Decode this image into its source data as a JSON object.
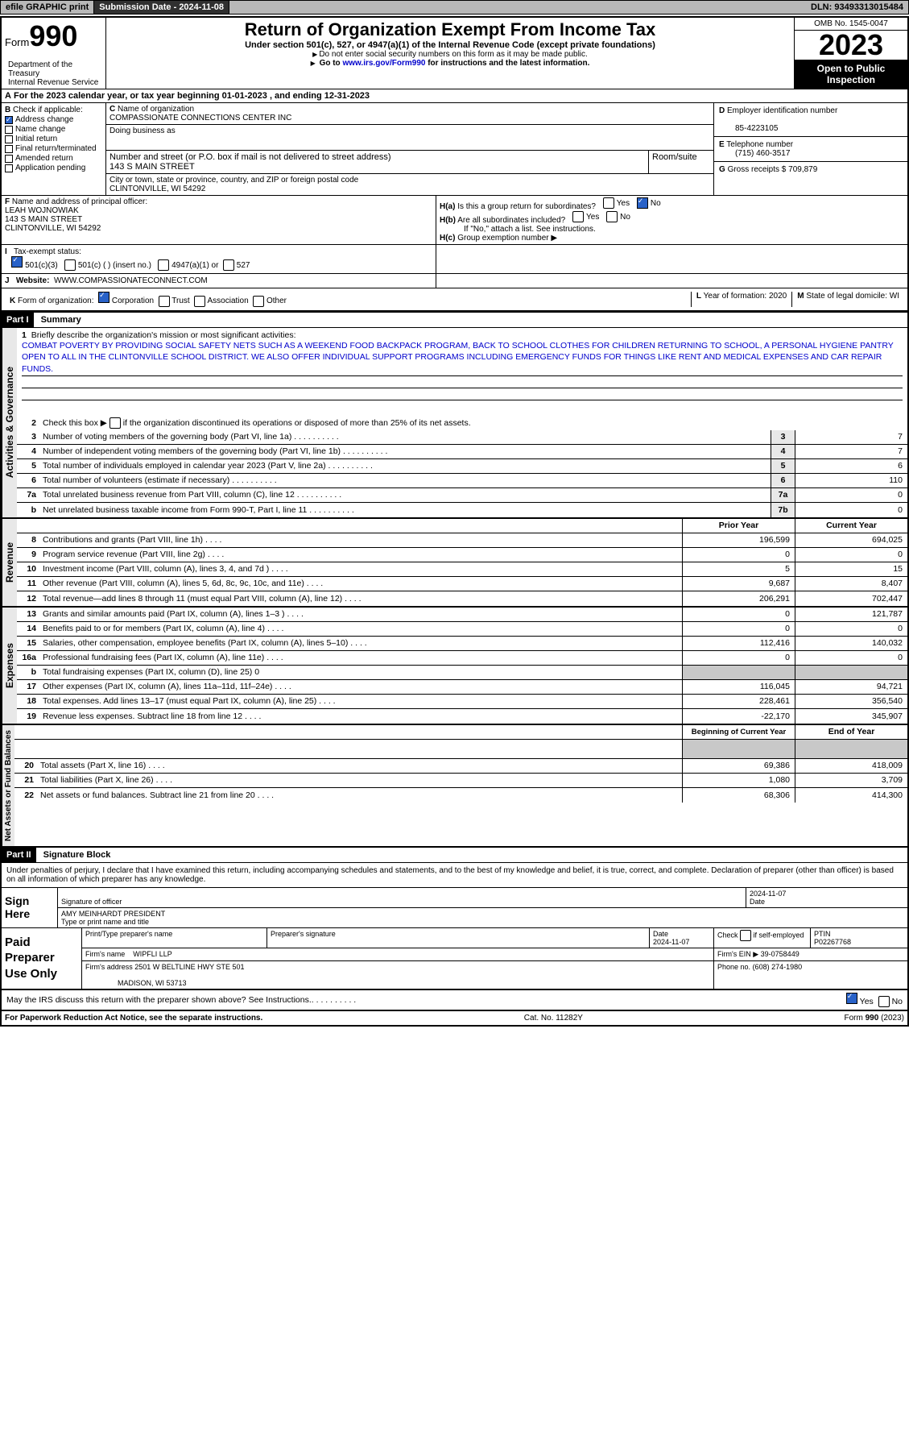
{
  "topbar": {
    "efile": "efile GRAPHIC print",
    "sub_label": "Submission Date - 2024-11-08",
    "dln": "DLN: 93493313015484"
  },
  "header": {
    "form_word": "Form",
    "form_num": "990",
    "dept": "Department of the Treasury\nInternal Revenue Service",
    "title": "Return of Organization Exempt From Income Tax",
    "sub1": "Under section 501(c), 527, or 4947(a)(1) of the Internal Revenue Code (except private foundations)",
    "sub2": "Do not enter social security numbers on this form as it may be made public.",
    "sub3_pre": "Go to ",
    "sub3_link": "www.irs.gov/Form990",
    "sub3_post": " for instructions and the latest information.",
    "omb": "OMB No. 1545-0047",
    "year": "2023",
    "open": "Open to Public Inspection"
  },
  "line_a": "For the 2023 calendar year, or tax year beginning 01-01-2023   , and ending 12-31-2023",
  "box_b": {
    "label": "Check if applicable:",
    "items": [
      "Address change",
      "Name change",
      "Initial return",
      "Final return/terminated",
      "Amended return",
      "Application pending"
    ],
    "checked": [
      true,
      false,
      false,
      false,
      false,
      false
    ]
  },
  "box_c": {
    "name_label": "Name of organization",
    "name": "COMPASSIONATE CONNECTIONS CENTER INC",
    "dba_label": "Doing business as",
    "addr_label": "Number and street (or P.O. box if mail is not delivered to street address)",
    "room_label": "Room/suite",
    "addr": "143 S MAIN STREET",
    "city_label": "City or town, state or province, country, and ZIP or foreign postal code",
    "city": "CLINTONVILLE, WI  54292"
  },
  "box_d": {
    "label": "Employer identification number",
    "val": "85-4223105"
  },
  "box_e": {
    "label": "Telephone number",
    "val": "(715) 460-3517"
  },
  "box_g": {
    "label": "Gross receipts $",
    "val": "709,879"
  },
  "box_f": {
    "label": "Name and address of principal officer:",
    "name": "LEAH WOJNOWIAK",
    "addr1": "143 S MAIN STREET",
    "addr2": "CLINTONVILLE, WI  54292"
  },
  "box_h": {
    "a": "Is this a group return for subordinates?",
    "b": "Are all subordinates included?",
    "note": "If \"No,\" attach a list. See instructions.",
    "c": "Group exemption number"
  },
  "box_i": {
    "label": "Tax-exempt status:",
    "opts": [
      "501(c)(3)",
      "501(c) (  ) (insert no.)",
      "4947(a)(1) or",
      "527"
    ]
  },
  "box_j": {
    "label": "Website:",
    "val": "WWW.COMPASSIONATECONNECT.COM"
  },
  "box_k": {
    "label": "Form of organization:",
    "opts": [
      "Corporation",
      "Trust",
      "Association",
      "Other"
    ]
  },
  "box_l": {
    "label": "Year of formation:",
    "val": "2020"
  },
  "box_m": {
    "label": "State of legal domicile:",
    "val": "WI"
  },
  "part1": {
    "hdr": "Part I",
    "title": "Summary"
  },
  "gov": {
    "label": "Activities & Governance",
    "l1": "Briefly describe the organization's mission or most significant activities:",
    "mission": "COMBAT POVERTY BY PROVIDING SOCIAL SAFETY NETS SUCH AS A WEEKEND FOOD BACKPACK PROGRAM, BACK TO SCHOOL CLOTHES FOR CHILDREN RETURNING TO SCHOOL, A PERSONAL HYGIENE PANTRY OPEN TO ALL IN THE CLINTONVILLE SCHOOL DISTRICT. WE ALSO OFFER INDIVIDUAL SUPPORT PROGRAMS INCLUDING EMERGENCY FUNDS FOR THINGS LIKE RENT AND MEDICAL EXPENSES AND CAR REPAIR FUNDS.",
    "l2": "Check this box      if the organization discontinued its operations or disposed of more than 25% of its net assets.",
    "lines": [
      {
        "n": "3",
        "t": "Number of voting members of the governing body (Part VI, line 1a)",
        "b": "3",
        "v": "7"
      },
      {
        "n": "4",
        "t": "Number of independent voting members of the governing body (Part VI, line 1b)",
        "b": "4",
        "v": "7"
      },
      {
        "n": "5",
        "t": "Total number of individuals employed in calendar year 2023 (Part V, line 2a)",
        "b": "5",
        "v": "6"
      },
      {
        "n": "6",
        "t": "Total number of volunteers (estimate if necessary)",
        "b": "6",
        "v": "110"
      },
      {
        "n": "7a",
        "t": "Total unrelated business revenue from Part VIII, column (C), line 12",
        "b": "7a",
        "v": "0"
      },
      {
        "n": "b",
        "t": "Net unrelated business taxable income from Form 990-T, Part I, line 11",
        "b": "7b",
        "v": "0"
      }
    ]
  },
  "rev": {
    "label": "Revenue",
    "hdr_prior": "Prior Year",
    "hdr_curr": "Current Year",
    "lines": [
      {
        "n": "8",
        "t": "Contributions and grants (Part VIII, line 1h)",
        "p": "196,599",
        "c": "694,025"
      },
      {
        "n": "9",
        "t": "Program service revenue (Part VIII, line 2g)",
        "p": "0",
        "c": "0"
      },
      {
        "n": "10",
        "t": "Investment income (Part VIII, column (A), lines 3, 4, and 7d )",
        "p": "5",
        "c": "15"
      },
      {
        "n": "11",
        "t": "Other revenue (Part VIII, column (A), lines 5, 6d, 8c, 9c, 10c, and 11e)",
        "p": "9,687",
        "c": "8,407"
      },
      {
        "n": "12",
        "t": "Total revenue—add lines 8 through 11 (must equal Part VIII, column (A), line 12)",
        "p": "206,291",
        "c": "702,447"
      }
    ]
  },
  "exp": {
    "label": "Expenses",
    "lines": [
      {
        "n": "13",
        "t": "Grants and similar amounts paid (Part IX, column (A), lines 1–3 )",
        "p": "0",
        "c": "121,787"
      },
      {
        "n": "14",
        "t": "Benefits paid to or for members (Part IX, column (A), line 4)",
        "p": "0",
        "c": "0"
      },
      {
        "n": "15",
        "t": "Salaries, other compensation, employee benefits (Part IX, column (A), lines 5–10)",
        "p": "112,416",
        "c": "140,032"
      },
      {
        "n": "16a",
        "t": "Professional fundraising fees (Part IX, column (A), line 11e)",
        "p": "0",
        "c": "0"
      },
      {
        "n": "b",
        "t": "Total fundraising expenses (Part IX, column (D), line 25) 0",
        "shade": true
      },
      {
        "n": "17",
        "t": "Other expenses (Part IX, column (A), lines 11a–11d, 11f–24e)",
        "p": "116,045",
        "c": "94,721"
      },
      {
        "n": "18",
        "t": "Total expenses. Add lines 13–17 (must equal Part IX, column (A), line 25)",
        "p": "228,461",
        "c": "356,540"
      },
      {
        "n": "19",
        "t": "Revenue less expenses. Subtract line 18 from line 12",
        "p": "-22,170",
        "c": "345,907"
      }
    ]
  },
  "net": {
    "label": "Net Assets or Fund Balances",
    "hdr_beg": "Beginning of Current Year",
    "hdr_end": "End of Year",
    "lines": [
      {
        "n": "20",
        "t": "Total assets (Part X, line 16)",
        "p": "69,386",
        "c": "418,009"
      },
      {
        "n": "21",
        "t": "Total liabilities (Part X, line 26)",
        "p": "1,080",
        "c": "3,709"
      },
      {
        "n": "22",
        "t": "Net assets or fund balances. Subtract line 21 from line 20",
        "p": "68,306",
        "c": "414,300"
      }
    ]
  },
  "part2": {
    "hdr": "Part II",
    "title": "Signature Block"
  },
  "perjury": "Under penalties of perjury, I declare that I have examined this return, including accompanying schedules and statements, and to the best of my knowledge and belief, it is true, correct, and complete. Declaration of preparer (other than officer) is based on all information of which preparer has any knowledge.",
  "sign": {
    "here": "Sign Here",
    "sig_label": "Signature of officer",
    "date_label": "Date",
    "date": "2024-11-07",
    "name": "AMY MEINHARDT PRESIDENT",
    "name_label": "Type or print name and title"
  },
  "paid": {
    "label": "Paid Preparer Use Only",
    "print_label": "Print/Type preparer's name",
    "sig_label": "Preparer's signature",
    "date_label": "Date",
    "date": "2024-11-07",
    "check_label": "Check      if self-employed",
    "ptin_label": "PTIN",
    "ptin": "P02267768",
    "firm_label": "Firm's name",
    "firm_name": "WIPFLI LLP",
    "ein_label": "Firm's EIN",
    "ein": "39-0758449",
    "addr_label": "Firm's address",
    "addr1": "2501 W BELTLINE HWY STE 501",
    "addr2": "MADISON, WI  53713",
    "phone_label": "Phone no.",
    "phone": "(608) 274-1980"
  },
  "discuss": "May the IRS discuss this return with the preparer shown above? See Instructions.",
  "footer": {
    "left": "For Paperwork Reduction Act Notice, see the separate instructions.",
    "mid": "Cat. No. 11282Y",
    "right": "Form 990 (2023)"
  },
  "yes": "Yes",
  "no": "No",
  "letters": {
    "A": "A",
    "B": "B",
    "C": "C",
    "D": "D",
    "E": "E",
    "F": "F",
    "G": "G",
    "H": "H",
    "I": "I",
    "J": "J",
    "K": "K",
    "L": "L",
    "M": "M",
    "Ha": "H(a)",
    "Hb": "H(b)",
    "Hc": "H(c)"
  }
}
